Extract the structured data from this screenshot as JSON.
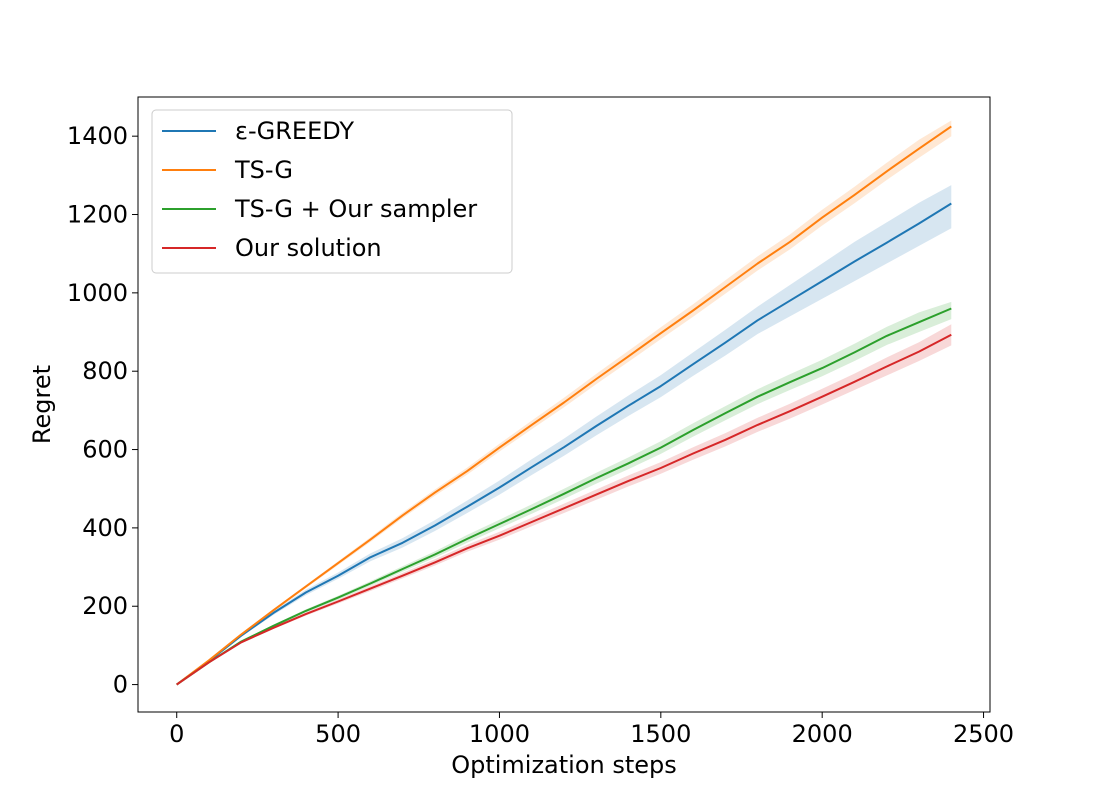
{
  "chart_data": {
    "type": "line",
    "title": "",
    "xlabel": "Optimization steps",
    "ylabel": "Regret",
    "xlim": [
      -120,
      2520
    ],
    "ylim": [
      -70,
      1500
    ],
    "xticks": [
      0,
      500,
      1000,
      1500,
      2000,
      2500
    ],
    "yticks": [
      0,
      200,
      400,
      600,
      800,
      1000,
      1200,
      1400
    ],
    "xtick_labels": [
      "0",
      "500",
      "1000",
      "1500",
      "2000",
      "2500"
    ],
    "ytick_labels": [
      "0",
      "200",
      "400",
      "600",
      "800",
      "1000",
      "1200",
      "1400"
    ],
    "grid": false,
    "legend_position": "upper left",
    "series": [
      {
        "name": "ε-GREEDY",
        "color": "#1f77b4",
        "x": [
          0,
          100,
          200,
          300,
          400,
          500,
          600,
          700,
          800,
          900,
          1000,
          1100,
          1200,
          1300,
          1400,
          1500,
          1600,
          1700,
          1800,
          1900,
          2000,
          2100,
          2200,
          2300,
          2400
        ],
        "y": [
          0,
          60,
          125,
          183,
          235,
          278,
          325,
          362,
          406,
          454,
          503,
          555,
          606,
          660,
          712,
          762,
          818,
          873,
          930,
          980,
          1030,
          1080,
          1128,
          1177,
          1228
        ],
        "lower": [
          0,
          59,
          122,
          178,
          228,
          270,
          315,
          350,
          392,
          438,
          485,
          535,
          584,
          636,
          686,
          734,
          788,
          840,
          895,
          940,
          985,
          1030,
          1075,
          1120,
          1165
        ],
        "upper": [
          0,
          61,
          128,
          188,
          242,
          286,
          335,
          374,
          420,
          470,
          521,
          575,
          628,
          684,
          738,
          790,
          848,
          906,
          965,
          1020,
          1075,
          1130,
          1180,
          1230,
          1275
        ]
      },
      {
        "name": "TS-G",
        "color": "#ff7f0e",
        "x": [
          0,
          100,
          200,
          300,
          400,
          500,
          600,
          700,
          800,
          900,
          1000,
          1100,
          1200,
          1300,
          1400,
          1500,
          1600,
          1700,
          1800,
          1900,
          2000,
          2100,
          2200,
          2300,
          2400
        ],
        "y": [
          0,
          62,
          128,
          190,
          250,
          310,
          370,
          432,
          490,
          545,
          605,
          663,
          720,
          780,
          838,
          897,
          955,
          1015,
          1075,
          1130,
          1192,
          1250,
          1310,
          1368,
          1425
        ],
        "lower": [
          0,
          61,
          126,
          187,
          246,
          305,
          364,
          425,
          482,
          536,
          595,
          652,
          708,
          767,
          824,
          882,
          939,
          998,
          1057,
          1111,
          1172,
          1229,
          1288,
          1345,
          1400
        ],
        "upper": [
          0,
          63,
          130,
          193,
          254,
          315,
          376,
          439,
          498,
          554,
          615,
          674,
          732,
          793,
          852,
          912,
          971,
          1032,
          1093,
          1149,
          1212,
          1271,
          1332,
          1391,
          1440
        ]
      },
      {
        "name": "TS-G + Our sampler",
        "color": "#2ca02c",
        "x": [
          0,
          100,
          200,
          300,
          400,
          500,
          600,
          700,
          800,
          900,
          1000,
          1100,
          1200,
          1300,
          1400,
          1500,
          1600,
          1700,
          1800,
          1900,
          2000,
          2100,
          2200,
          2300,
          2400
        ],
        "y": [
          0,
          57,
          110,
          150,
          188,
          222,
          258,
          295,
          332,
          372,
          410,
          448,
          487,
          527,
          565,
          605,
          650,
          693,
          735,
          772,
          808,
          848,
          890,
          925,
          960
        ],
        "lower": [
          0,
          56,
          108,
          147,
          184,
          217,
          252,
          288,
          324,
          362,
          399,
          436,
          474,
          513,
          550,
          589,
          633,
          675,
          716,
          752,
          787,
          826,
          867,
          900,
          933
        ],
        "upper": [
          0,
          58,
          112,
          153,
          192,
          227,
          264,
          302,
          340,
          382,
          421,
          460,
          500,
          541,
          580,
          621,
          667,
          711,
          754,
          792,
          829,
          870,
          913,
          950,
          977
        ]
      },
      {
        "name": "Our solution",
        "color": "#d62728",
        "x": [
          0,
          100,
          200,
          300,
          400,
          500,
          600,
          700,
          800,
          900,
          1000,
          1100,
          1200,
          1300,
          1400,
          1500,
          1600,
          1700,
          1800,
          1900,
          2000,
          2100,
          2200,
          2300,
          2400
        ],
        "y": [
          0,
          57,
          108,
          145,
          180,
          212,
          245,
          278,
          312,
          348,
          380,
          415,
          450,
          485,
          520,
          553,
          590,
          625,
          663,
          698,
          735,
          773,
          812,
          850,
          893
        ],
        "lower": [
          0,
          56,
          106,
          142,
          176,
          207,
          239,
          271,
          304,
          339,
          370,
          404,
          438,
          472,
          506,
          538,
          574,
          608,
          645,
          679,
          715,
          752,
          789,
          826,
          866
        ],
        "upper": [
          0,
          58,
          110,
          148,
          184,
          217,
          251,
          285,
          320,
          357,
          390,
          426,
          462,
          498,
          534,
          568,
          606,
          642,
          681,
          717,
          755,
          794,
          835,
          874,
          920
        ]
      }
    ]
  }
}
